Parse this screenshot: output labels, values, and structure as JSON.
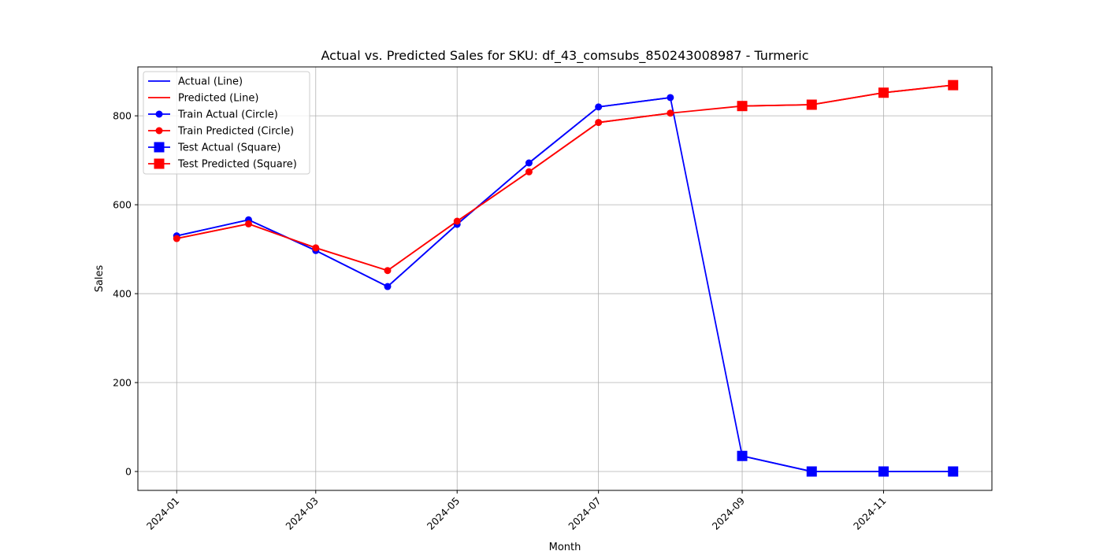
{
  "chart_data": {
    "type": "line",
    "title": "Actual vs. Predicted Sales for SKU: df_43_comsubs_850243008987 - Turmeric",
    "x_label": "Month",
    "y_label": "Sales",
    "x": [
      "2024-01",
      "2024-02",
      "2024-03",
      "2024-04",
      "2024-05",
      "2024-06",
      "2024-07",
      "2024-08",
      "2024-09",
      "2024-10",
      "2024-11",
      "2024-12"
    ],
    "xticks": [
      "2024-01",
      "2024-03",
      "2024-05",
      "2024-07",
      "2024-09",
      "2024-11"
    ],
    "ylim": [
      -42.5,
      910
    ],
    "yticks": [
      0,
      200,
      400,
      600,
      800
    ],
    "grid": true,
    "legend": "upper left",
    "series": [
      {
        "name": "Actual (Line)",
        "color": "#0000ff",
        "marker": "none",
        "values": [
          530,
          566,
          497,
          416,
          556,
          694,
          820,
          841,
          35,
          0,
          0,
          0
        ]
      },
      {
        "name": "Predicted (Line)",
        "color": "#ff0000",
        "marker": "none",
        "values": [
          524,
          557,
          503,
          452,
          563,
          674,
          785,
          806,
          822,
          825,
          852,
          869
        ]
      },
      {
        "name": "Train Actual (Circle)",
        "color": "#0000ff",
        "marker": "circle",
        "values": [
          530,
          566,
          497,
          416,
          556,
          694,
          820,
          841,
          null,
          null,
          null,
          null
        ]
      },
      {
        "name": "Train Predicted (Circle)",
        "color": "#ff0000",
        "marker": "circle",
        "values": [
          524,
          557,
          503,
          452,
          563,
          674,
          785,
          806,
          null,
          null,
          null,
          null
        ]
      },
      {
        "name": "Test Actual (Square)",
        "color": "#0000ff",
        "marker": "square",
        "values": [
          null,
          null,
          null,
          null,
          null,
          null,
          null,
          null,
          35,
          0,
          0,
          0
        ]
      },
      {
        "name": "Test Predicted (Square)",
        "color": "#ff0000",
        "marker": "square",
        "values": [
          null,
          null,
          null,
          null,
          null,
          null,
          null,
          null,
          822,
          825,
          852,
          869
        ]
      }
    ]
  }
}
